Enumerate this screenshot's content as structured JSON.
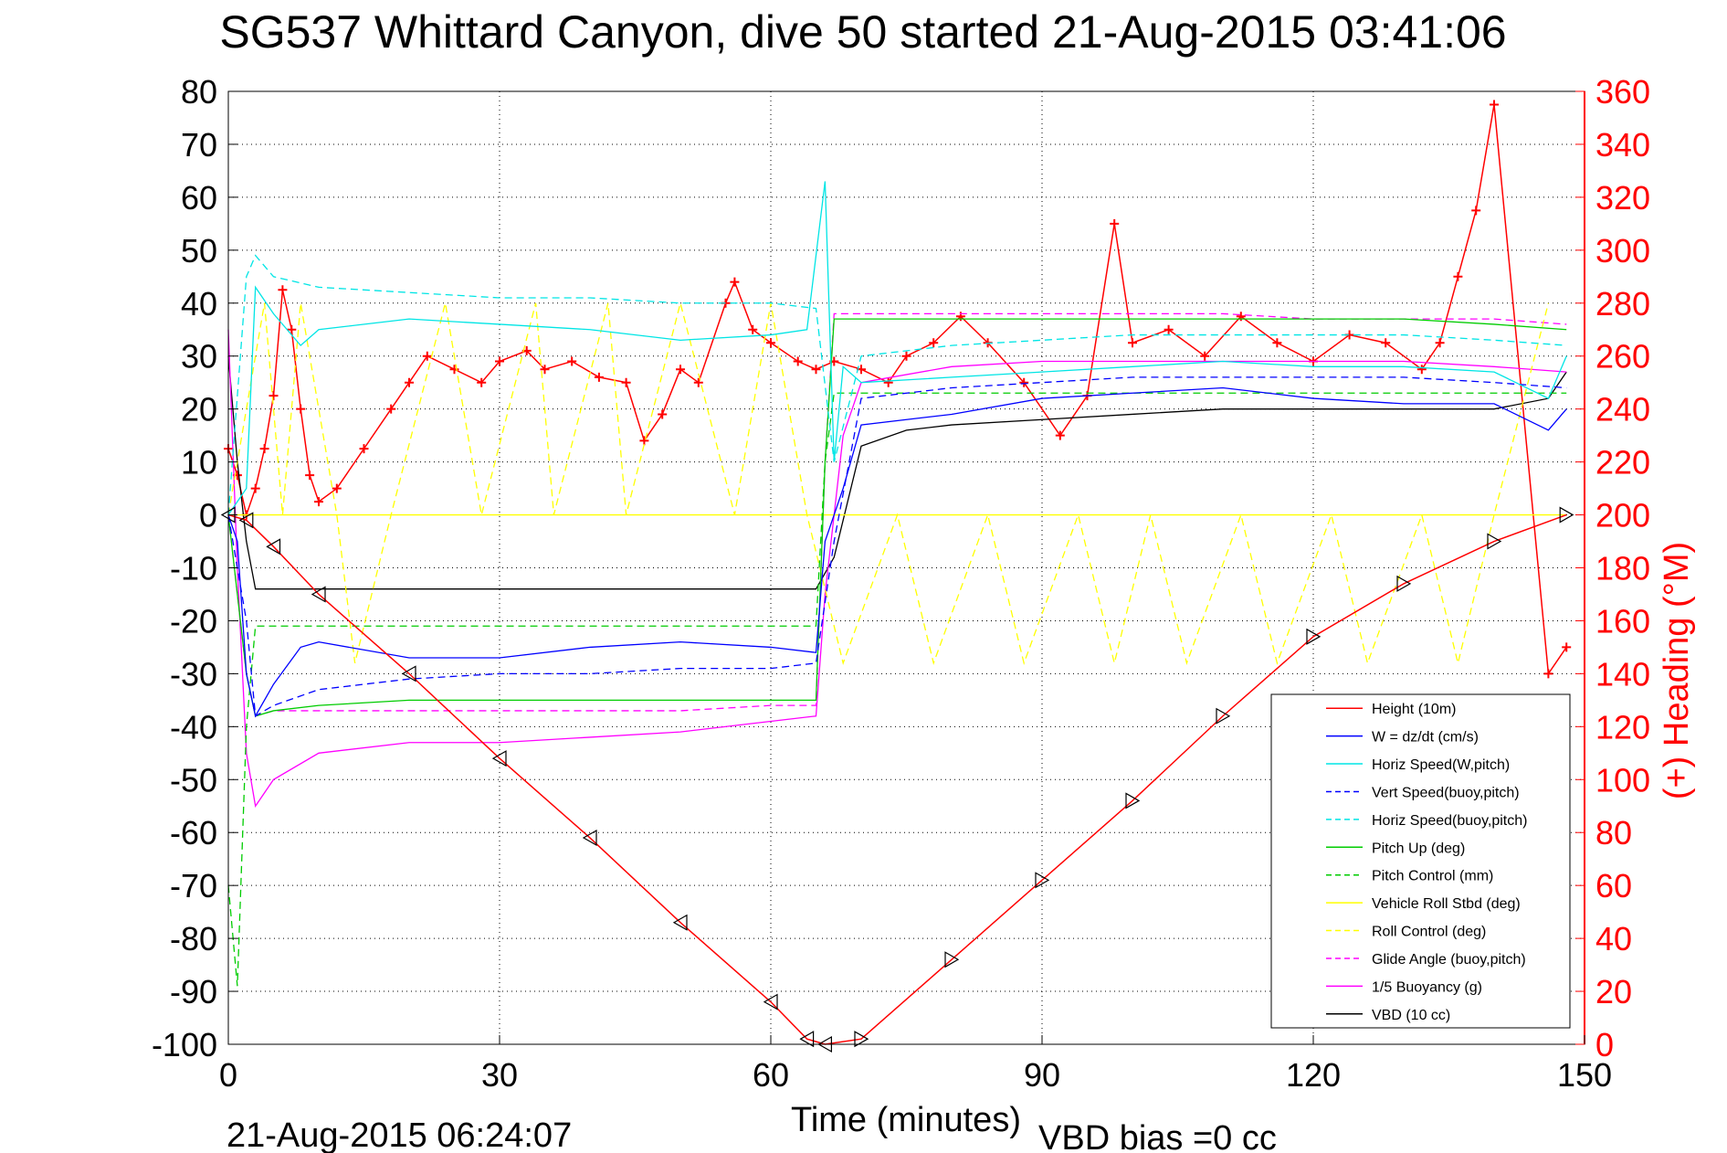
{
  "chart_data": {
    "type": "line",
    "title": "SG537 Whittard Canyon, dive 50 started 21-Aug-2015 03:41:06",
    "xlabel": "Time (minutes)",
    "ylabel": "",
    "y2label": "(+) Heading (°M)",
    "footer_left": "21-Aug-2015 06:24:07",
    "footer_right": "VBD bias =0 cc",
    "xlim": [
      0,
      150
    ],
    "ylim": [
      -100,
      80
    ],
    "y2lim": [
      0,
      360
    ],
    "xticks": [
      0,
      30,
      60,
      90,
      120,
      150
    ],
    "yticks": [
      80,
      70,
      60,
      50,
      40,
      30,
      20,
      10,
      0,
      -10,
      -20,
      -30,
      -40,
      -50,
      -60,
      -70,
      -80,
      -90,
      -100
    ],
    "y2ticks": [
      360,
      340,
      320,
      300,
      280,
      260,
      240,
      220,
      200,
      180,
      160,
      140,
      120,
      100,
      80,
      60,
      40,
      20,
      0
    ],
    "grid": true,
    "legend_position": "lower-right",
    "legend": [
      "Height (10m)",
      "W = dz/dt (cm/s)",
      "Horiz Speed(W,pitch)",
      "Vert Speed(buoy,pitch)",
      "Horiz Speed(buoy,pitch)",
      "Pitch Up (deg)",
      "Pitch Control (mm)",
      "Vehicle Roll Stbd (deg)",
      "Roll Control (deg)",
      "Glide Angle (buoy,pitch)",
      "1/5 Buoyancy (g)",
      "VBD (10 cc)"
    ],
    "series": [
      {
        "name": "Height (10m)",
        "color": "#ff0000",
        "style": "solid",
        "x": [
          0,
          2,
          5,
          10,
          20,
          30,
          40,
          50,
          60,
          64,
          66,
          70,
          80,
          90,
          100,
          110,
          120,
          130,
          140,
          148
        ],
        "y": [
          0,
          -1,
          -6,
          -15,
          -30,
          -46,
          -61,
          -77,
          -92,
          -99,
          -100,
          -99,
          -84,
          -69,
          -54,
          -38,
          -23,
          -13,
          -5,
          0
        ]
      },
      {
        "name": "W = dz/dt (cm/s)",
        "color": "#0000ff",
        "style": "solid",
        "x": [
          0,
          1,
          2,
          3,
          5,
          8,
          10,
          20,
          30,
          40,
          50,
          60,
          65,
          66,
          68,
          70,
          80,
          90,
          100,
          110,
          120,
          130,
          140,
          146,
          148
        ],
        "y": [
          0,
          -5,
          -30,
          -38,
          -32,
          -25,
          -24,
          -27,
          -27,
          -25,
          -24,
          -25,
          -26,
          -5,
          5,
          17,
          19,
          22,
          23,
          24,
          22,
          21,
          21,
          16,
          20
        ]
      },
      {
        "name": "Horiz Speed(W,pitch)",
        "color": "#00e5e5",
        "style": "solid",
        "x": [
          0,
          2,
          3,
          5,
          8,
          10,
          20,
          30,
          40,
          50,
          60,
          64,
          66,
          67,
          68,
          70,
          80,
          90,
          100,
          110,
          120,
          130,
          140,
          146,
          148
        ],
        "y": [
          0,
          5,
          43,
          38,
          32,
          35,
          37,
          36,
          35,
          33,
          34,
          35,
          63,
          10,
          28,
          25,
          26,
          27,
          28,
          29,
          28,
          28,
          27,
          22,
          30
        ]
      },
      {
        "name": "Vert Speed(buoy,pitch)",
        "color": "#0000ff",
        "style": "dashed",
        "x": [
          0,
          2,
          3,
          5,
          10,
          20,
          30,
          40,
          50,
          60,
          65,
          67,
          70,
          80,
          90,
          100,
          110,
          120,
          130,
          140,
          148
        ],
        "y": [
          0,
          -20,
          -38,
          -36,
          -33,
          -31,
          -30,
          -30,
          -29,
          -29,
          -28,
          -5,
          22,
          24,
          25,
          26,
          26,
          26,
          26,
          25,
          24
        ]
      },
      {
        "name": "Horiz Speed(buoy,pitch)",
        "color": "#00e5e5",
        "style": "dashed",
        "x": [
          0,
          2,
          3,
          5,
          10,
          20,
          30,
          40,
          50,
          60,
          65,
          67,
          70,
          80,
          90,
          100,
          110,
          120,
          130,
          140,
          148
        ],
        "y": [
          0,
          45,
          49,
          45,
          43,
          42,
          41,
          41,
          40,
          40,
          39,
          10,
          30,
          32,
          33,
          34,
          34,
          34,
          34,
          33,
          32
        ]
      },
      {
        "name": "Pitch Up (deg)",
        "color": "#00cc00",
        "style": "solid",
        "x": [
          0,
          2,
          3,
          5,
          10,
          20,
          30,
          40,
          50,
          60,
          65,
          66,
          67,
          70,
          80,
          90,
          100,
          110,
          120,
          130,
          140,
          148
        ],
        "y": [
          0,
          -30,
          -38,
          -37,
          -36,
          -35,
          -35,
          -35,
          -35,
          -35,
          -35,
          10,
          37,
          37,
          37,
          37,
          37,
          37,
          37,
          37,
          36,
          35
        ]
      },
      {
        "name": "Pitch Control (mm)",
        "color": "#00cc00",
        "style": "dashed",
        "x": [
          0,
          1,
          2,
          3,
          5,
          10,
          20,
          30,
          40,
          50,
          60,
          65,
          66,
          67,
          80,
          90,
          100,
          110,
          120,
          130,
          140,
          148
        ],
        "y": [
          -70,
          -89,
          -40,
          -21,
          -21,
          -21,
          -21,
          -21,
          -21,
          -21,
          -21,
          -21,
          10,
          23,
          23,
          23,
          23,
          23,
          23,
          23,
          23,
          23
        ]
      },
      {
        "name": "Vehicle Roll Stbd (deg)",
        "color": "#ffff00",
        "style": "solid",
        "x": [
          0,
          5,
          10,
          20,
          30,
          40,
          50,
          60,
          65,
          70,
          80,
          90,
          100,
          110,
          120,
          130,
          140,
          148
        ],
        "y": [
          0,
          0,
          0,
          0,
          0,
          0,
          0,
          0,
          0,
          0,
          0,
          0,
          0,
          0,
          0,
          0,
          0,
          0
        ]
      },
      {
        "name": "Roll Control (deg)",
        "color": "#ffff00",
        "style": "dashed",
        "x": [
          0,
          4,
          6,
          8,
          12,
          14,
          18,
          24,
          28,
          34,
          36,
          42,
          44,
          50,
          56,
          60,
          64,
          68,
          74,
          78,
          84,
          88,
          94,
          98,
          102,
          106,
          112,
          116,
          122,
          126,
          132,
          136,
          140,
          146
        ],
        "y": [
          0,
          40,
          0,
          40,
          0,
          -28,
          0,
          40,
          0,
          40,
          0,
          40,
          0,
          40,
          0,
          40,
          0,
          -28,
          0,
          -28,
          0,
          -28,
          0,
          -28,
          0,
          -28,
          0,
          -28,
          0,
          -28,
          0,
          -28,
          0,
          40
        ]
      },
      {
        "name": "Glide Angle (buoy,pitch)",
        "color": "#ff00ff",
        "style": "dashed",
        "x": [
          0,
          2,
          3,
          5,
          10,
          20,
          30,
          40,
          50,
          60,
          65,
          66,
          67,
          70,
          80,
          90,
          100,
          110,
          120,
          130,
          140,
          148
        ],
        "y": [
          0,
          -30,
          -38,
          -37,
          -37,
          -37,
          -37,
          -37,
          -37,
          -36,
          -36,
          10,
          38,
          38,
          38,
          38,
          38,
          38,
          37,
          37,
          37,
          36
        ]
      },
      {
        "name": "1/5 Buoyancy (g)",
        "color": "#ff00ff",
        "style": "solid",
        "x": [
          0,
          1,
          2,
          3,
          5,
          10,
          20,
          30,
          40,
          50,
          60,
          65,
          66,
          68,
          70,
          80,
          90,
          100,
          110,
          120,
          130,
          140,
          148
        ],
        "y": [
          35,
          -10,
          -45,
          -55,
          -50,
          -45,
          -43,
          -43,
          -42,
          -41,
          -39,
          -38,
          -15,
          15,
          25,
          28,
          29,
          29,
          29,
          29,
          29,
          28,
          27
        ]
      },
      {
        "name": "VBD (10 cc)",
        "color": "#000000",
        "style": "solid",
        "x": [
          0,
          1,
          2,
          3,
          10,
          20,
          30,
          40,
          50,
          60,
          65,
          67,
          70,
          75,
          80,
          90,
          100,
          110,
          120,
          130,
          140,
          146,
          148
        ],
        "y": [
          30,
          10,
          -5,
          -14,
          -14,
          -14,
          -14,
          -14,
          -14,
          -14,
          -14,
          -8,
          13,
          16,
          17,
          18,
          19,
          20,
          20,
          20,
          20,
          22,
          27
        ]
      },
      {
        "name": "(+) Heading",
        "axis": "y2",
        "color": "#ff0000",
        "marker": "+",
        "x": [
          0,
          1,
          2,
          3,
          4,
          5,
          6,
          7,
          8,
          9,
          10,
          12,
          15,
          18,
          20,
          22,
          25,
          28,
          30,
          33,
          35,
          38,
          41,
          44,
          46,
          48,
          50,
          52,
          55,
          56,
          58,
          60,
          63,
          65,
          67,
          70,
          73,
          75,
          78,
          81,
          84,
          88,
          92,
          95,
          98,
          100,
          104,
          108,
          112,
          116,
          120,
          124,
          128,
          132,
          134,
          136,
          138,
          140,
          146,
          148
        ],
        "y": [
          225,
          215,
          200,
          210,
          225,
          245,
          285,
          270,
          240,
          215,
          205,
          210,
          225,
          240,
          250,
          260,
          255,
          250,
          258,
          262,
          255,
          258,
          252,
          250,
          228,
          238,
          255,
          250,
          280,
          288,
          270,
          265,
          258,
          255,
          258,
          255,
          250,
          260,
          265,
          275,
          265,
          250,
          230,
          245,
          310,
          265,
          270,
          260,
          275,
          265,
          258,
          268,
          265,
          255,
          265,
          290,
          315,
          355,
          140,
          150
        ]
      }
    ]
  }
}
